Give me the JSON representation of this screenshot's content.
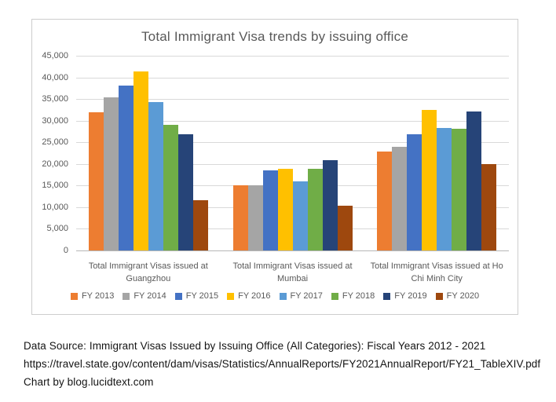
{
  "chart_data": {
    "type": "bar",
    "title": "Total Immigrant Visa trends by issuing office",
    "categories": [
      "Total Immigrant Visas issued at Guangzhou",
      "Total Immigrant Visas issued at Mumbai",
      "Total Immigrant Visas issued at Ho Chi Minh City"
    ],
    "category_label_lines": [
      [
        "Total Immigrant Visas issued at",
        "Guangzhou"
      ],
      [
        "Total Immigrant Visas issued at",
        "Mumbai"
      ],
      [
        "Total Immigrant Visas issued at Ho",
        "Chi Minh City"
      ]
    ],
    "series": [
      {
        "name": "FY 2013",
        "color": "#ED7D31",
        "values": [
          31900,
          15100,
          22800
        ]
      },
      {
        "name": "FY 2014",
        "color": "#A5A5A5",
        "values": [
          35300,
          15100,
          24000
        ]
      },
      {
        "name": "FY 2015",
        "color": "#4472C4",
        "values": [
          38100,
          18500,
          26900
        ]
      },
      {
        "name": "FY 2016",
        "color": "#FFC000",
        "values": [
          41300,
          18900,
          32400
        ]
      },
      {
        "name": "FY 2017",
        "color": "#5B9BD5",
        "values": [
          34300,
          16000,
          28300
        ]
      },
      {
        "name": "FY 2018",
        "color": "#70AD47",
        "values": [
          29000,
          18800,
          28100
        ]
      },
      {
        "name": "FY 2019",
        "color": "#264478",
        "values": [
          26900,
          20800,
          32200
        ]
      },
      {
        "name": "FY 2020",
        "color": "#9E480E",
        "values": [
          11700,
          10300,
          19900
        ]
      }
    ],
    "ylim": [
      0,
      45000
    ],
    "ytick_step": 5000,
    "yticks_top_to_bottom": [
      "45,000",
      "40,000",
      "35,000",
      "30,000",
      "25,000",
      "20,000",
      "15,000",
      "10,000",
      "5,000",
      "0"
    ],
    "grid": true,
    "legend_position": "bottom",
    "text_color": "#595959",
    "gridline_color": "#D9D9D9"
  },
  "footer": {
    "line1": "Data Source: Immigrant Visas Issued by Issuing Office (All Categories): Fiscal Years 2012 - 2021",
    "line2": "https://travel.state.gov/content/dam/visas/Statistics/AnnualReports/FY2021AnnualReport/FY21_TableXIV.pdf",
    "line3": "Chart by blog.lucidtext.com"
  }
}
